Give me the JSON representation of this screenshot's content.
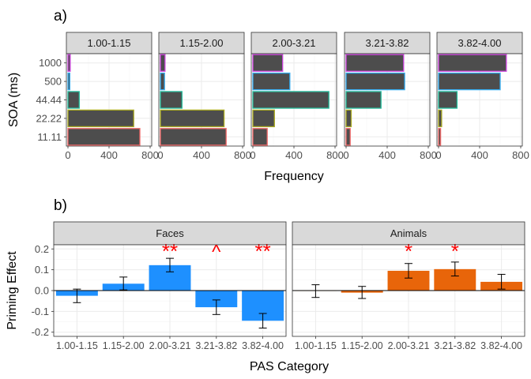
{
  "chart_data": [
    {
      "type": "bar",
      "orientation": "horizontal",
      "panel_label": "a)",
      "xlabel": "Frequency",
      "ylabel": "SOA (ms)",
      "xlim": [
        0,
        800
      ],
      "x_ticks": [
        0,
        400,
        800
      ],
      "x_tick_labels": [
        "0",
        "400",
        "800"
      ],
      "categories": [
        "1000",
        "500",
        "44.44",
        "22.22",
        "11.11"
      ],
      "category_colors": {
        "1000": "#cc44dd",
        "500": "#33aaee",
        "44.44": "#22bb99",
        "22.22": "#aaaa22",
        "11.11": "#ee6666"
      },
      "bar_fill": "#4d4d4d",
      "grid": true,
      "facets": [
        {
          "label": "1.00-1.15",
          "values": [
            22,
            18,
            110,
            640,
            700
          ]
        },
        {
          "label": "1.15-2.00",
          "values": [
            45,
            40,
            210,
            620,
            640
          ]
        },
        {
          "label": "2.00-3.21",
          "values": [
            290,
            360,
            740,
            210,
            140
          ]
        },
        {
          "label": "3.21-3.82",
          "values": [
            560,
            570,
            340,
            50,
            40
          ]
        },
        {
          "label": "3.82-4.00",
          "values": [
            660,
            600,
            180,
            30,
            20
          ]
        }
      ]
    },
    {
      "type": "bar",
      "panel_label": "b)",
      "xlabel": "PAS Category",
      "ylabel": "Priming Effect",
      "ylim": [
        -0.22,
        0.22
      ],
      "y_ticks": [
        -0.2,
        -0.1,
        0.0,
        0.1,
        0.2
      ],
      "y_tick_labels": [
        "-0.2",
        "-0.1",
        "0.0",
        "0.1",
        "0.2"
      ],
      "categories": [
        "1.00-1.15",
        "1.15-2.00",
        "2.00-3.21",
        "3.21-3.82",
        "3.82-4.00"
      ],
      "grid": true,
      "facets": [
        {
          "label": "Faces",
          "color": "#1e90ff",
          "values": [
            -0.025,
            0.033,
            0.122,
            -0.08,
            -0.145
          ],
          "error_low": [
            -0.058,
            0.003,
            0.09,
            -0.115,
            -0.18
          ],
          "error_high": [
            0.007,
            0.065,
            0.155,
            -0.045,
            -0.11
          ],
          "annotations": [
            "",
            "",
            "**",
            "^",
            "**"
          ]
        },
        {
          "label": "Animals",
          "color": "#e8650a",
          "values": [
            -0.002,
            -0.01,
            0.095,
            0.103,
            0.042
          ],
          "error_low": [
            -0.033,
            -0.038,
            0.06,
            0.07,
            0.007
          ],
          "error_high": [
            0.028,
            0.02,
            0.13,
            0.137,
            0.078
          ],
          "annotations": [
            "",
            "",
            "*",
            "*",
            ""
          ]
        }
      ],
      "annotation_color": "#ff0000"
    }
  ]
}
